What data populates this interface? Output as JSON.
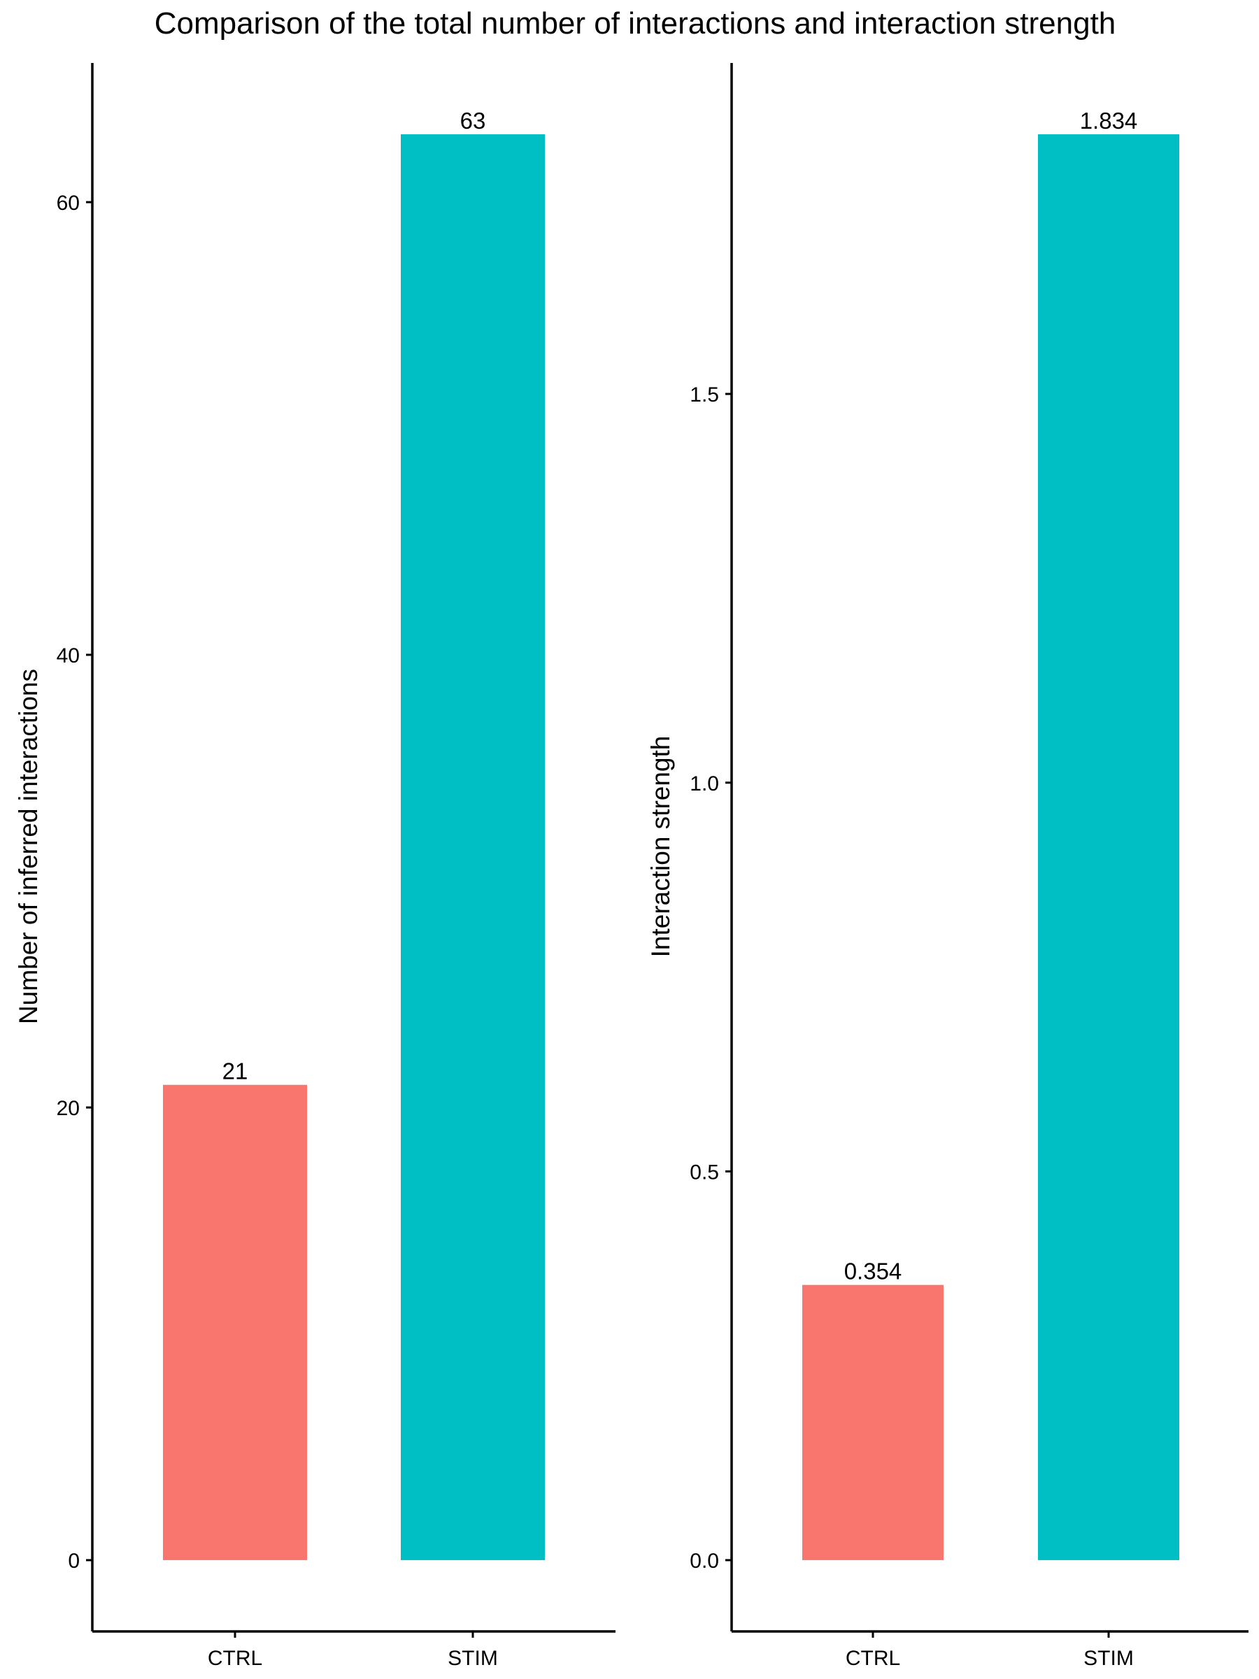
{
  "title": "Comparison of the total number of interactions and interaction strength",
  "colors": {
    "CTRL": "#F8766D",
    "STIM": "#00BFC4"
  },
  "chart_data": [
    {
      "type": "bar",
      "categories": [
        "CTRL",
        "STIM"
      ],
      "values": [
        21,
        63
      ],
      "data_labels": [
        "21",
        "63"
      ],
      "xlabel": "",
      "ylabel": "Number of inferred interactions",
      "ylim": [
        -3.15,
        66.15
      ],
      "yticks": [
        0,
        20,
        40,
        60
      ],
      "ytick_labels": [
        "0",
        "20",
        "40",
        "60"
      ],
      "grid": false,
      "legend": "none"
    },
    {
      "type": "bar",
      "categories": [
        "CTRL",
        "STIM"
      ],
      "values": [
        0.354,
        1.834
      ],
      "data_labels": [
        "0.354",
        "1.834"
      ],
      "xlabel": "",
      "ylabel": "Interaction strength",
      "ylim": [
        -0.0917,
        1.9257
      ],
      "yticks": [
        0.0,
        0.5,
        1.0,
        1.5
      ],
      "ytick_labels": [
        "0.0",
        "0.5",
        "1.0",
        "1.5"
      ],
      "grid": false,
      "legend": "none"
    }
  ]
}
